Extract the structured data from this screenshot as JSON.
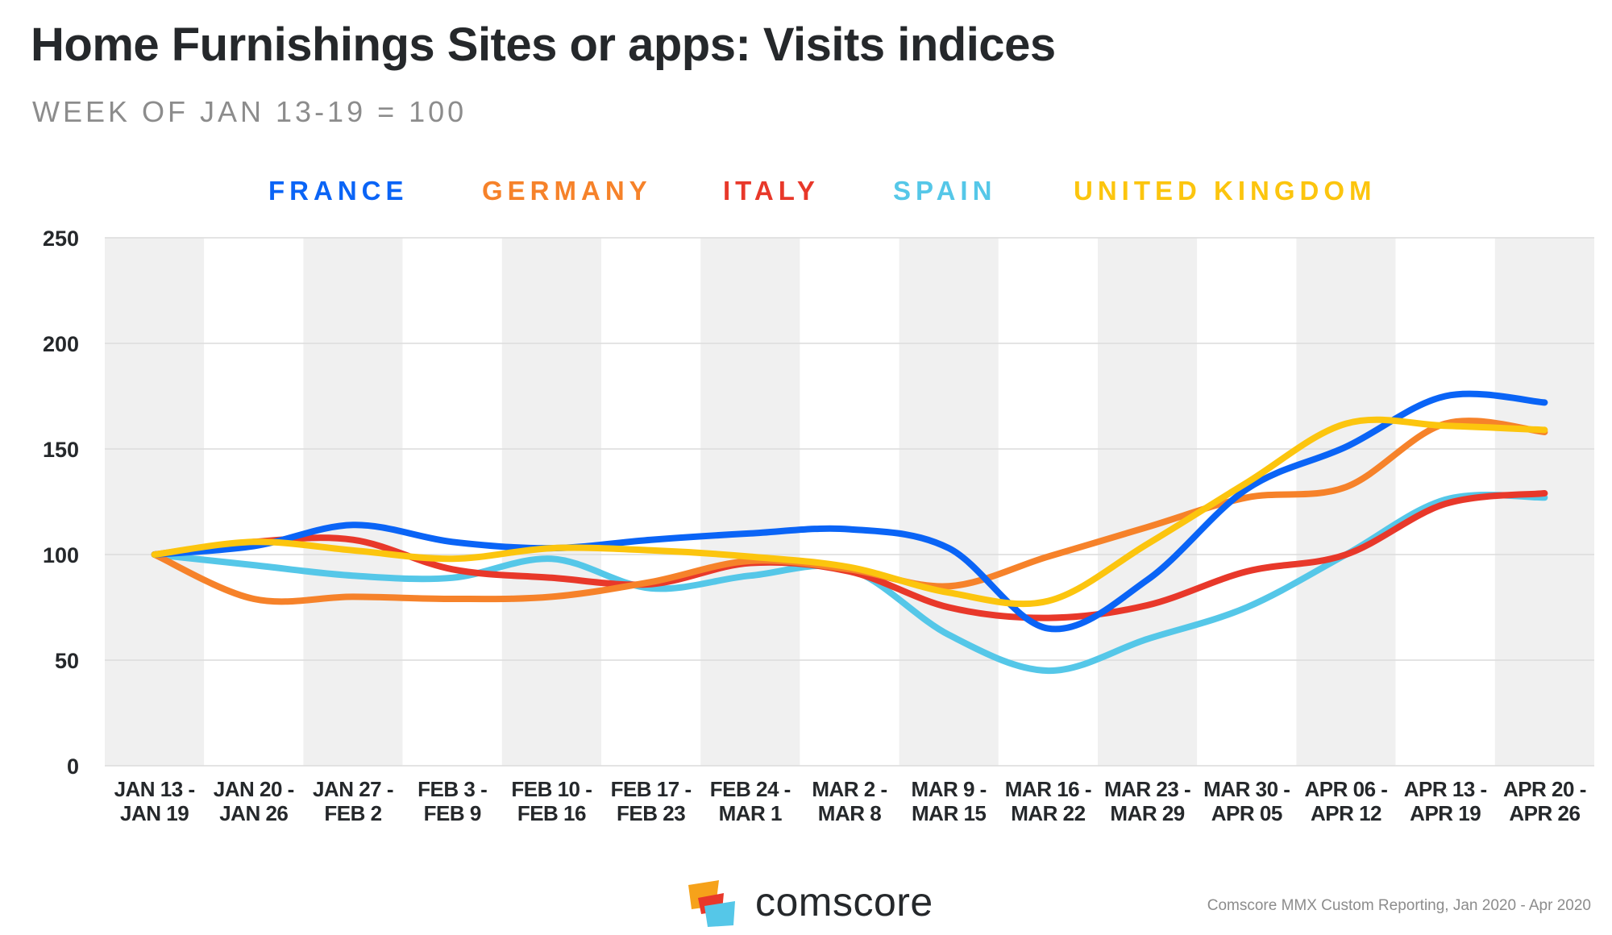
{
  "header": {
    "title": "Home Furnishings Sites or apps: Visits indices",
    "subtitle": "WEEK OF JAN 13-19 = 100"
  },
  "legend": [
    {
      "label": "FRANCE",
      "color": "#0a64f6"
    },
    {
      "label": "GERMANY",
      "color": "#f6822a"
    },
    {
      "label": "ITALY",
      "color": "#e8382a"
    },
    {
      "label": "SPAIN",
      "color": "#55c7e8"
    },
    {
      "label": "UNITED KINGDOM",
      "color": "#fcc50e"
    }
  ],
  "chart_data": {
    "type": "line",
    "title": "Home Furnishings Sites or apps: Visits indices",
    "subtitle": "WEEK OF JAN 13-19 = 100",
    "xlabel": "",
    "ylabel": "",
    "ylim": [
      0,
      250
    ],
    "yticks": [
      0,
      50,
      100,
      150,
      200,
      250
    ],
    "categories": [
      [
        "JAN 13 -",
        "JAN 19"
      ],
      [
        "JAN 20 -",
        "JAN 26"
      ],
      [
        "JAN 27 -",
        "FEB 2"
      ],
      [
        "FEB 3 -",
        "FEB 9"
      ],
      [
        "FEB 10 -",
        "FEB 16"
      ],
      [
        "FEB 17 -",
        "FEB 23"
      ],
      [
        "FEB 24 -",
        "MAR 1"
      ],
      [
        "MAR 2 -",
        "MAR 8"
      ],
      [
        "MAR 9 -",
        "MAR 15"
      ],
      [
        "MAR 16 -",
        "MAR 22"
      ],
      [
        "MAR 23 -",
        "MAR 29"
      ],
      [
        "MAR 30 -",
        "APR 05"
      ],
      [
        "APR 06 -",
        "APR 12"
      ],
      [
        "APR 13 -",
        "APR 19"
      ],
      [
        "APR 20 -",
        "APR 26"
      ]
    ],
    "series": [
      {
        "name": "SPAIN",
        "color": "#55c7e8",
        "values": [
          100,
          95,
          90,
          89,
          98,
          84,
          90,
          93,
          62,
          45,
          60,
          75,
          100,
          126,
          127
        ]
      },
      {
        "name": "ITALY",
        "color": "#e8382a",
        "values": [
          100,
          106,
          107,
          93,
          89,
          86,
          96,
          92,
          75,
          70,
          76,
          92,
          100,
          124,
          129
        ]
      },
      {
        "name": "GERMANY",
        "color": "#f6822a",
        "values": [
          100,
          79,
          80,
          79,
          80,
          87,
          97,
          93,
          85,
          99,
          113,
          127,
          132,
          162,
          158
        ]
      },
      {
        "name": "FRANCE",
        "color": "#0a64f6",
        "values": [
          100,
          104,
          114,
          106,
          103,
          107,
          110,
          112,
          103,
          65,
          88,
          131,
          151,
          175,
          172
        ]
      },
      {
        "name": "UNITED KINGDOM",
        "color": "#fcc50e",
        "values": [
          100,
          106,
          102,
          98,
          103,
          102,
          99,
          94,
          82,
          78,
          105,
          134,
          162,
          161,
          159
        ]
      }
    ],
    "grid": true,
    "legend_position": "top"
  },
  "footer": {
    "brand": "comscore",
    "source": "Comscore MMX Custom Reporting, Jan 2020 - Apr 2020"
  }
}
